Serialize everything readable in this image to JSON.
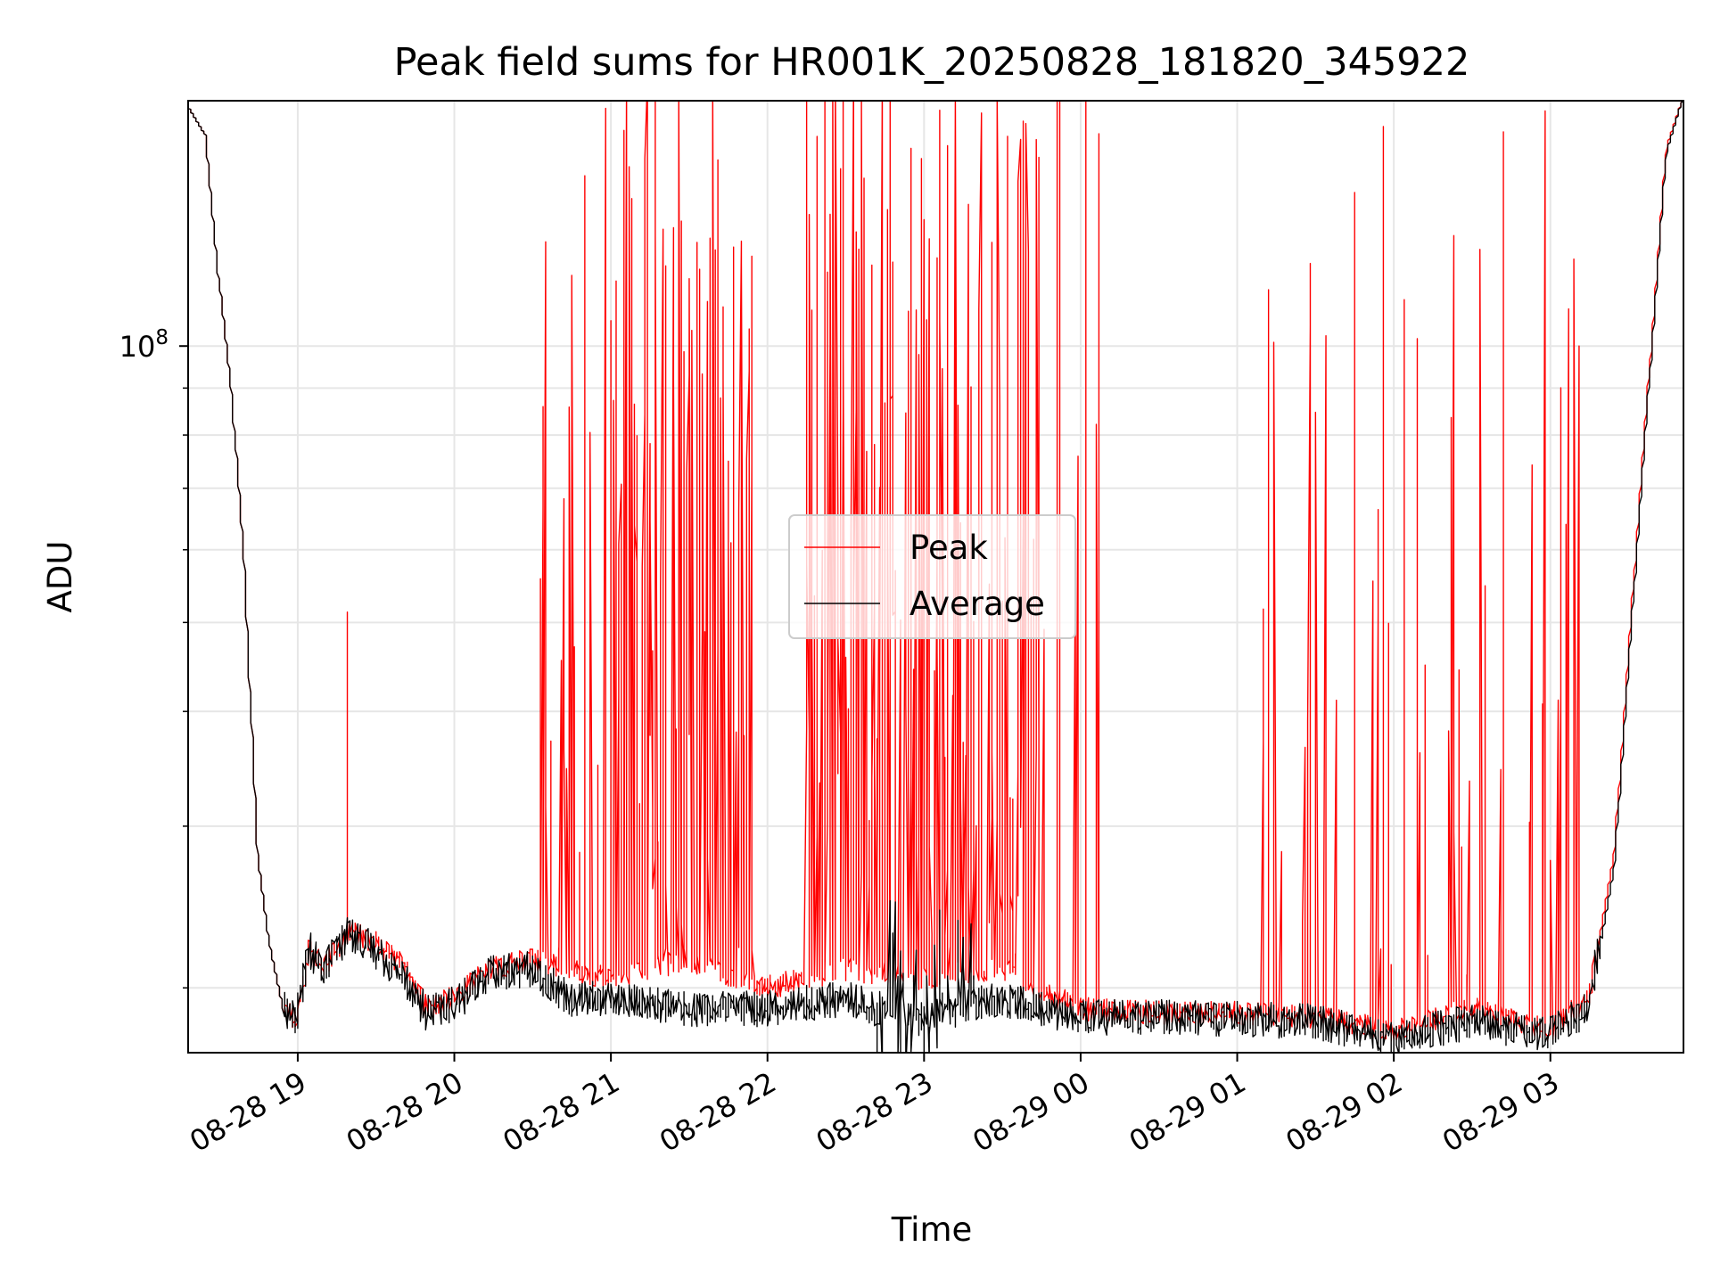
{
  "chart_data": {
    "type": "line",
    "title": "Peak field sums for HR001K_20250828_181820_345922",
    "xlabel": "Time",
    "ylabel": "ADU",
    "yscale": "log",
    "ylim": [
      17000000,
      185000000
    ],
    "xlim": [
      "2025-08-28 18:18",
      "2025-08-29 03:51"
    ],
    "x_ticks": [
      {
        "value": "2025-08-28 19:00",
        "label": "08-28 19"
      },
      {
        "value": "2025-08-28 20:00",
        "label": "08-28 20"
      },
      {
        "value": "2025-08-28 21:00",
        "label": "08-28 21"
      },
      {
        "value": "2025-08-28 22:00",
        "label": "08-28 22"
      },
      {
        "value": "2025-08-28 23:00",
        "label": "08-28 23"
      },
      {
        "value": "2025-08-29 00:00",
        "label": "08-29 00"
      },
      {
        "value": "2025-08-29 01:00",
        "label": "08-29 01"
      },
      {
        "value": "2025-08-29 02:00",
        "label": "08-29 02"
      },
      {
        "value": "2025-08-29 03:00",
        "label": "08-29 03"
      }
    ],
    "y_ticks": [
      {
        "value": 100000000,
        "label_base": "10",
        "label_exp": "8"
      }
    ],
    "y_minor_ticks": [
      20000000,
      30000000,
      40000000,
      50000000,
      60000000,
      70000000,
      80000000,
      90000000
    ],
    "grid": true,
    "legend": {
      "position": "center",
      "entries": [
        "Peak",
        "Average"
      ]
    },
    "series": [
      {
        "name": "Peak",
        "color": "#ff0000",
        "style": "dense spiky line; spikes reach top of axes in clusters",
        "x": [
          "2025-08-28 18:18",
          "2025-08-28 18:25",
          "2025-08-28 18:30",
          "2025-08-28 18:35",
          "2025-08-28 18:40",
          "2025-08-28 18:45",
          "2025-08-28 18:50",
          "2025-08-28 18:55",
          "2025-08-28 19:00",
          "2025-08-28 19:05",
          "2025-08-28 19:10",
          "2025-08-28 19:20",
          "2025-08-28 19:30",
          "2025-08-28 19:42",
          "2025-08-28 19:50",
          "2025-08-28 20:00",
          "2025-08-28 20:15",
          "2025-08-28 20:30",
          "2025-08-28 20:45",
          "2025-08-28 21:00",
          "2025-08-28 21:30",
          "2025-08-28 22:00",
          "2025-08-28 22:30",
          "2025-08-28 23:00",
          "2025-08-28 23:30",
          "2025-08-29 00:00",
          "2025-08-29 00:30",
          "2025-08-29 01:00",
          "2025-08-29 01:30",
          "2025-08-29 02:00",
          "2025-08-29 02:30",
          "2025-08-29 03:00",
          "2025-08-29 03:15",
          "2025-08-29 03:25",
          "2025-08-29 03:35",
          "2025-08-29 03:45",
          "2025-08-29 03:51"
        ],
        "values": [
          183000000,
          170000000,
          120000000,
          90000000,
          58000000,
          28000000,
          22000000,
          19000000,
          18500000,
          22000000,
          21000000,
          23000000,
          22500000,
          21000000,
          19000000,
          19500000,
          21000000,
          21500000,
          21000000,
          20500000,
          21500000,
          20000000,
          21000000,
          20500000,
          21000000,
          19000000,
          18800000,
          18800000,
          18600000,
          18000000,
          19000000,
          18000000,
          19500000,
          28000000,
          70000000,
          165000000,
          185000000
        ]
      },
      {
        "name": "Average",
        "color": "#000000",
        "style": "baseline envelope beneath peak",
        "x": [
          "2025-08-28 18:18",
          "2025-08-28 18:25",
          "2025-08-28 18:30",
          "2025-08-28 18:35",
          "2025-08-28 18:40",
          "2025-08-28 18:45",
          "2025-08-28 18:50",
          "2025-08-28 18:55",
          "2025-08-28 19:00",
          "2025-08-28 19:05",
          "2025-08-28 19:10",
          "2025-08-28 19:20",
          "2025-08-28 19:30",
          "2025-08-28 19:42",
          "2025-08-28 19:50",
          "2025-08-28 20:00",
          "2025-08-28 20:15",
          "2025-08-28 20:30",
          "2025-08-28 20:45",
          "2025-08-28 21:00",
          "2025-08-28 21:30",
          "2025-08-28 22:00",
          "2025-08-28 22:30",
          "2025-08-28 23:00",
          "2025-08-28 23:30",
          "2025-08-29 00:00",
          "2025-08-29 00:30",
          "2025-08-29 01:00",
          "2025-08-29 01:30",
          "2025-08-29 02:00",
          "2025-08-29 02:30",
          "2025-08-29 03:00",
          "2025-08-29 03:15",
          "2025-08-29 03:25",
          "2025-08-29 03:35",
          "2025-08-29 03:45",
          "2025-08-29 03:51"
        ],
        "values": [
          183000000,
          170000000,
          120000000,
          90000000,
          58000000,
          28000000,
          22000000,
          19000000,
          18500000,
          22000000,
          21000000,
          23000000,
          22000000,
          20500000,
          18800000,
          19200000,
          20800000,
          21000000,
          19500000,
          19500000,
          19000000,
          19000000,
          19500000,
          18500000,
          19500000,
          18600000,
          18600000,
          18500000,
          18400000,
          17600000,
          18400000,
          17800000,
          19000000,
          27000000,
          68000000,
          163000000,
          185000000
        ]
      }
    ]
  }
}
